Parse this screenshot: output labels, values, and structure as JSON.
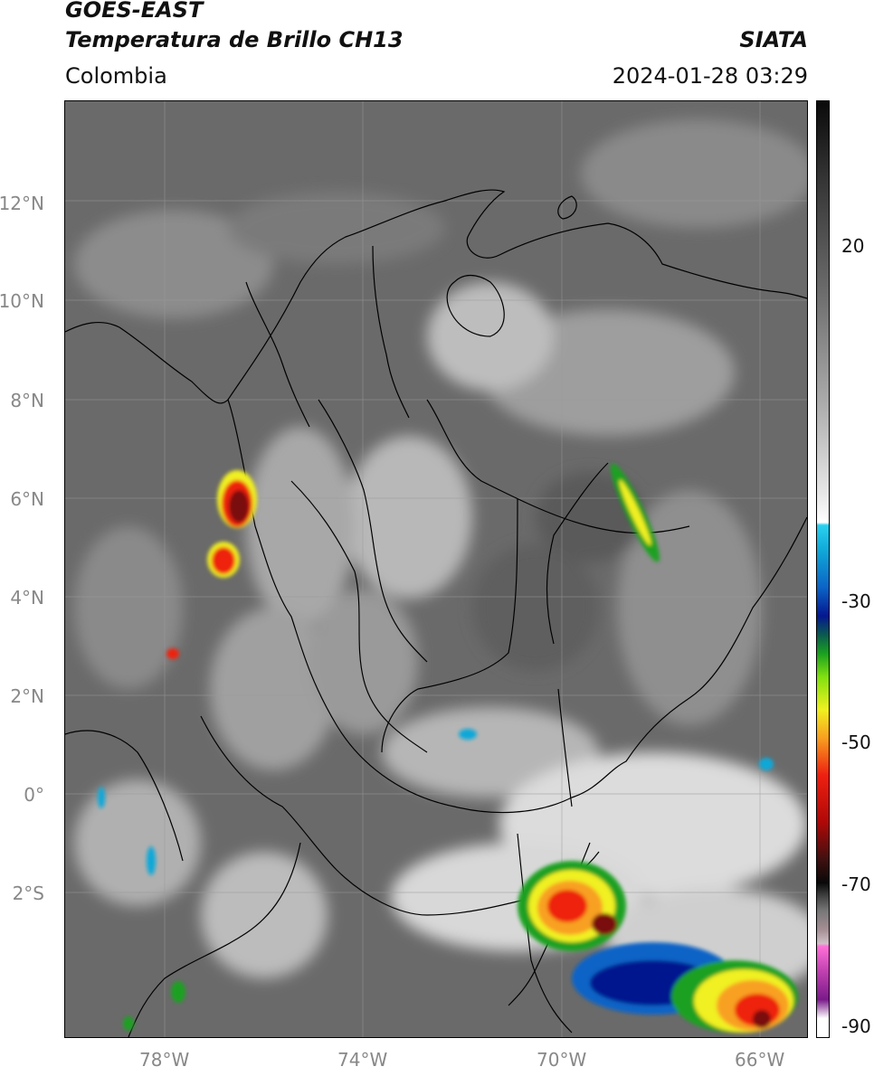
{
  "header": {
    "satellite": "GOES-EAST",
    "product": "Temperatura de Brillo CH13",
    "region": "Colombia",
    "brand": "SIATA",
    "datetime": "2024-01-28 03:29"
  },
  "axes": {
    "lat_labels": [
      "12°N",
      "10°N",
      "8°N",
      "6°N",
      "4°N",
      "2°N",
      "0°",
      "2°S"
    ],
    "lon_labels": [
      "78°W",
      "74°W",
      "70°W",
      "66°W"
    ]
  },
  "colorbar": {
    "ticks": [
      "20",
      "-30",
      "-50",
      "-70",
      "-90"
    ],
    "colors": {
      "cold_top": "#000000",
      "warm_bottom": "#ffffff",
      "cyan": "#2ad0f0",
      "blue": "#04178f",
      "green": "#1aa020",
      "yellow": "#f0f020",
      "red": "#ee2010",
      "magenta": "#c040b0"
    }
  },
  "map": {
    "extent_lon": [
      -80,
      -65
    ],
    "extent_lat": [
      -5,
      14
    ],
    "grid": true
  }
}
